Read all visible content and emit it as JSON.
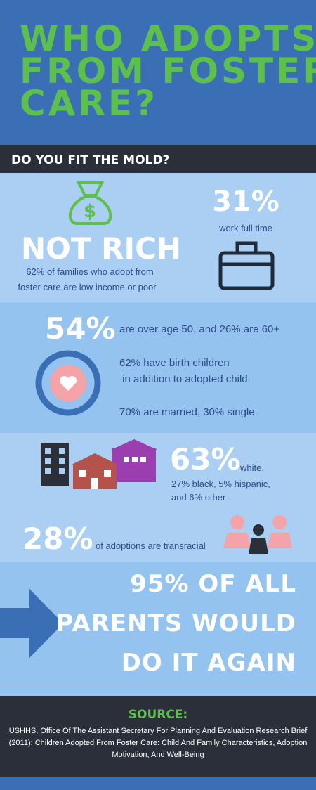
{
  "header": {
    "title_lines": [
      "WHO ADOPTS",
      "FROM FOSTER",
      "CARE?"
    ],
    "subtitle": "DO YOU FIT THE MOLD?"
  },
  "income": {
    "headline": "NOT RICH",
    "text_lines": [
      "62% of families who adopt from",
      "foster care are low income or poor"
    ]
  },
  "work": {
    "stat": "31%",
    "text": "work full time"
  },
  "age": {
    "stat": "54%",
    "text": "are over age 50, and 26% are 60+"
  },
  "children": {
    "text_lines": [
      "62% have birth children",
      " in addition to adopted child."
    ]
  },
  "marriage": {
    "text": "70% are married, 30% single"
  },
  "race": {
    "stat": "63%",
    "text_lines": [
      "white,",
      "27% black, 5% hispanic,",
      "and 6% other"
    ]
  },
  "transracial": {
    "stat": "28%",
    "text": "of adoptions are transracial"
  },
  "again": {
    "lines": [
      "95% OF ALL",
      "PARENTS WOULD",
      "DO IT AGAIN"
    ]
  },
  "source": {
    "title": "SOURCE:",
    "text_lines": [
      "USHHS, Office Of The Assistant Secretary For Planning And Evaluation Research Brief",
      "(2011): Children Adopted From Foster Care: Child And Family Characteristics, Adoption",
      "Motivation, And Well-Being"
    ]
  }
}
